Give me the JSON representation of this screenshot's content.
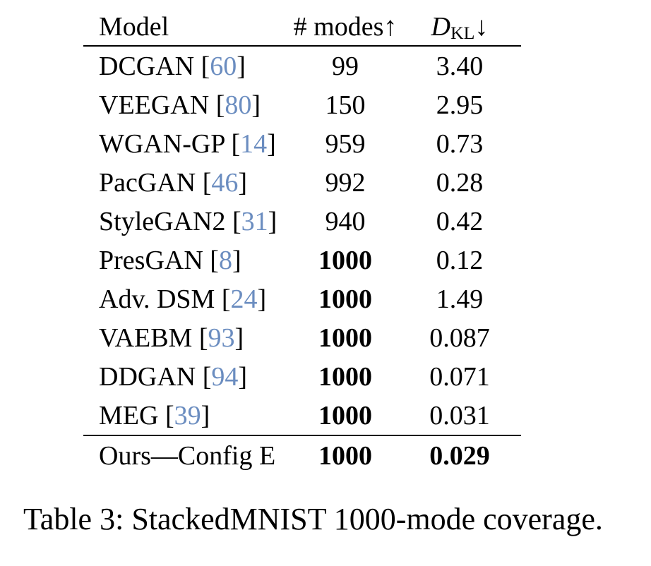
{
  "colors": {
    "citation": "#6b8dc0",
    "text": "#000000",
    "rule": "#000000"
  },
  "table": {
    "headers": {
      "model": "Model",
      "modes_label": "# modes",
      "modes_arrow": "↑",
      "dkl_d": "D",
      "dkl_sub": "KL",
      "dkl_arrow": "↓"
    },
    "rows": [
      {
        "model": "DCGAN",
        "cite": "60",
        "modes": "99",
        "dkl": "3.40",
        "modes_bold": false,
        "dkl_bold": false
      },
      {
        "model": "VEEGAN",
        "cite": "80",
        "modes": "150",
        "dkl": "2.95",
        "modes_bold": false,
        "dkl_bold": false
      },
      {
        "model": "WGAN-GP",
        "cite": "14",
        "modes": "959",
        "dkl": "0.73",
        "modes_bold": false,
        "dkl_bold": false
      },
      {
        "model": "PacGAN",
        "cite": "46",
        "modes": "992",
        "dkl": "0.28",
        "modes_bold": false,
        "dkl_bold": false
      },
      {
        "model": "StyleGAN2",
        "cite": "31",
        "modes": "940",
        "dkl": "0.42",
        "modes_bold": false,
        "dkl_bold": false
      },
      {
        "model": "PresGAN",
        "cite": "8",
        "modes": "1000",
        "dkl": "0.12",
        "modes_bold": true,
        "dkl_bold": false
      },
      {
        "model": "Adv. DSM",
        "cite": "24",
        "modes": "1000",
        "dkl": "1.49",
        "modes_bold": true,
        "dkl_bold": false
      },
      {
        "model": "VAEBM",
        "cite": "93",
        "modes": "1000",
        "dkl": "0.087",
        "modes_bold": true,
        "dkl_bold": false
      },
      {
        "model": "DDGAN",
        "cite": "94",
        "modes": "1000",
        "dkl": "0.071",
        "modes_bold": true,
        "dkl_bold": false
      },
      {
        "model": "MEG",
        "cite": "39",
        "modes": "1000",
        "dkl": "0.031",
        "modes_bold": true,
        "dkl_bold": false
      }
    ],
    "final_row": {
      "model": "Ours—Config E",
      "modes": "1000",
      "dkl": "0.029",
      "modes_bold": true,
      "dkl_bold": true
    },
    "bracket_open": "[",
    "bracket_close": "]"
  },
  "caption": "Table 3: StackedMNIST 1000-mode coverage."
}
